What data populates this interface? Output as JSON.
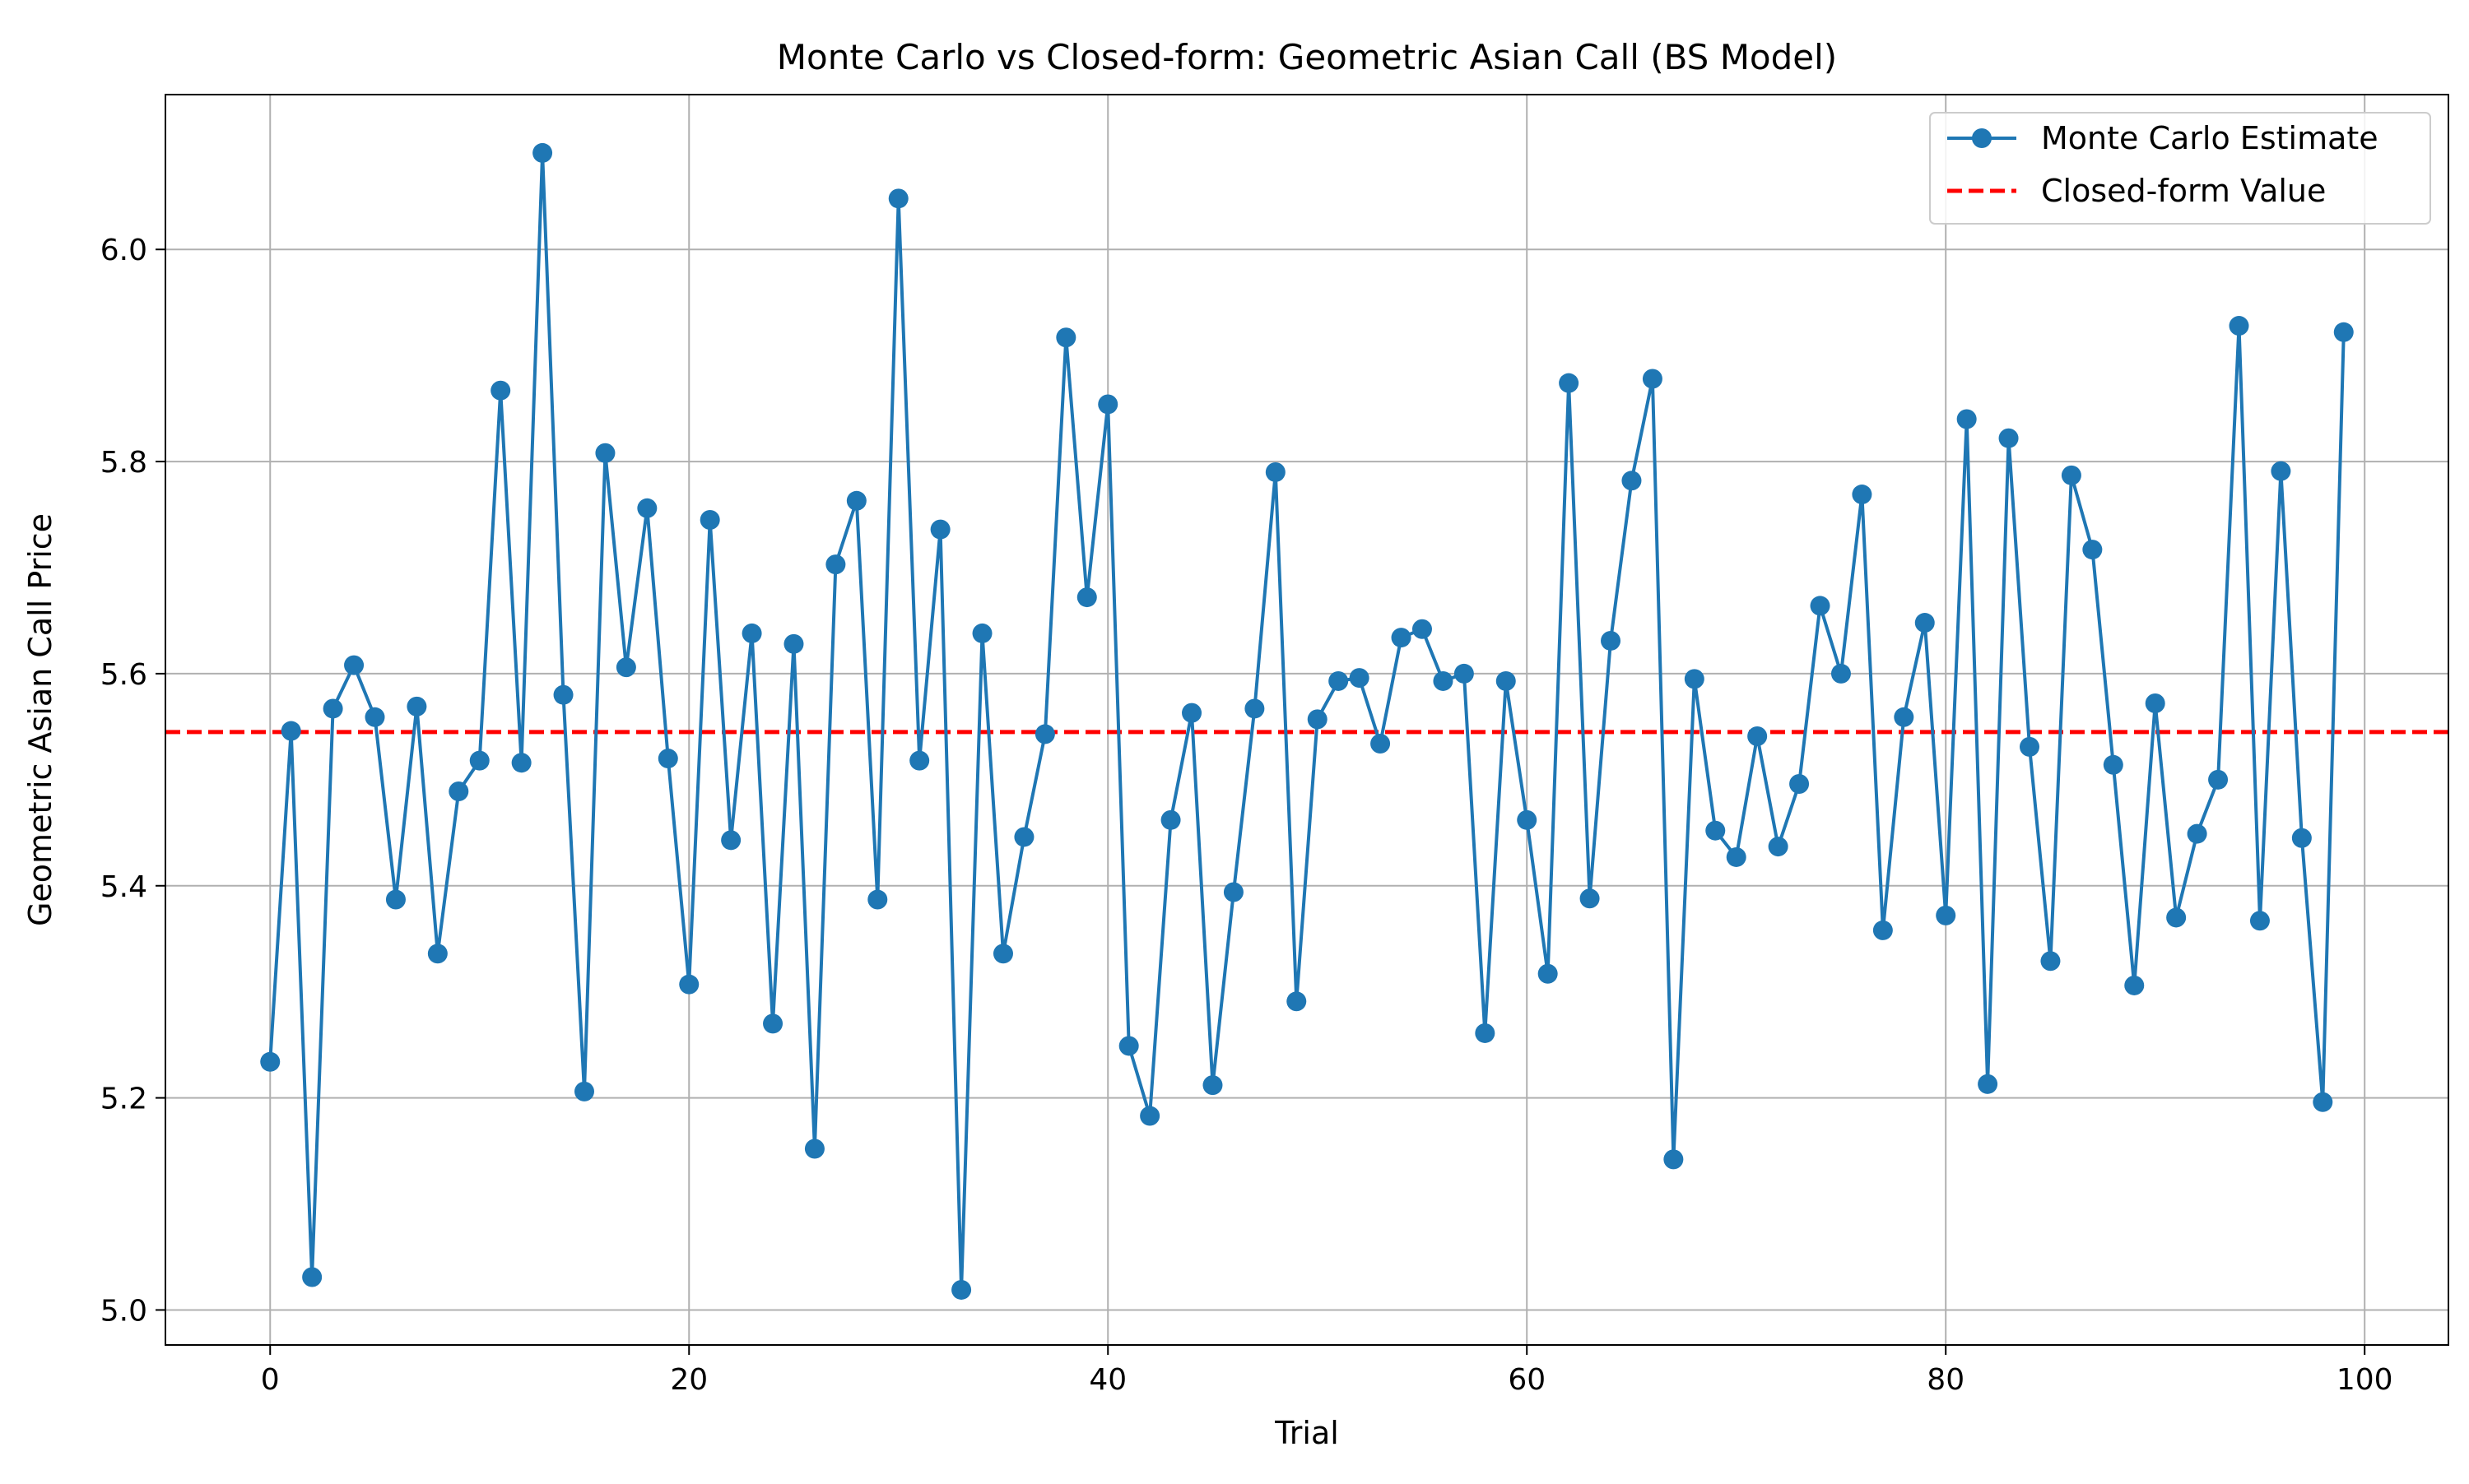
{
  "chart_data": {
    "type": "line",
    "title": "Monte Carlo vs Closed-form: Geometric Asian Call (BS Model)",
    "xlabel": "Trial",
    "ylabel": "Geometric Asian Call Price",
    "xlim": [
      -5,
      104
    ],
    "ylim": [
      4.967,
      6.146
    ],
    "xticks": [
      0,
      20,
      40,
      60,
      80,
      100
    ],
    "yticks": [
      5.0,
      5.2,
      5.4,
      5.6,
      5.8,
      6.0
    ],
    "xtick_labels": [
      "0",
      "20",
      "40",
      "60",
      "80",
      "100"
    ],
    "ytick_labels": [
      "5.0",
      "5.2",
      "5.4",
      "5.6",
      "5.8",
      "6.0"
    ],
    "grid": true,
    "legend": {
      "placement": "top-right",
      "entries": [
        {
          "label": "Monte Carlo Estimate",
          "style": "line-marker",
          "color": "#1f77b4"
        },
        {
          "label": "Closed-form Value",
          "style": "dashed",
          "color": "#ff0000"
        }
      ]
    },
    "series": [
      {
        "name": "Monte Carlo Estimate",
        "color": "#1f77b4",
        "x": [
          0,
          1,
          2,
          3,
          4,
          5,
          6,
          7,
          8,
          9,
          10,
          11,
          12,
          13,
          14,
          15,
          16,
          17,
          18,
          19,
          20,
          21,
          22,
          23,
          24,
          25,
          26,
          27,
          28,
          29,
          30,
          31,
          32,
          33,
          34,
          35,
          36,
          37,
          38,
          39,
          40,
          41,
          42,
          43,
          44,
          45,
          46,
          47,
          48,
          49,
          50,
          51,
          52,
          53,
          54,
          55,
          56,
          57,
          58,
          59,
          60,
          61,
          62,
          63,
          64,
          65,
          66,
          67,
          68,
          69,
          70,
          71,
          72,
          73,
          74,
          75,
          76,
          77,
          78,
          79,
          80,
          81,
          82,
          83,
          84,
          85,
          86,
          87,
          88,
          89,
          90,
          91,
          92,
          93,
          94,
          95,
          96,
          97,
          98,
          99
        ],
        "y": [
          5.234,
          5.546,
          5.031,
          5.567,
          5.608,
          5.559,
          5.387,
          5.569,
          5.336,
          5.489,
          5.518,
          5.867,
          5.516,
          6.091,
          5.58,
          5.206,
          5.808,
          5.606,
          5.756,
          5.52,
          5.307,
          5.745,
          5.443,
          5.638,
          5.27,
          5.628,
          5.152,
          5.703,
          5.763,
          5.387,
          6.048,
          5.518,
          5.736,
          5.019,
          5.638,
          5.336,
          5.446,
          5.543,
          5.917,
          5.672,
          5.854,
          5.249,
          5.183,
          5.462,
          5.563,
          5.212,
          5.394,
          5.567,
          5.79,
          5.291,
          5.557,
          5.593,
          5.596,
          5.534,
          5.634,
          5.642,
          5.593,
          5.6,
          5.261,
          5.593,
          5.462,
          5.317,
          5.874,
          5.388,
          5.631,
          5.782,
          5.878,
          5.142,
          5.595,
          5.452,
          5.427,
          5.541,
          5.437,
          5.496,
          5.664,
          5.6,
          5.769,
          5.358,
          5.559,
          5.648,
          5.372,
          5.84,
          5.213,
          5.822,
          5.531,
          5.329,
          5.787,
          5.717,
          5.514,
          5.306,
          5.572,
          5.37,
          5.449,
          5.5,
          5.928,
          5.367,
          5.791,
          5.445,
          5.196,
          5.922
        ]
      },
      {
        "name": "Closed-form Value",
        "color": "#ff0000",
        "constant": 5.545
      }
    ]
  }
}
